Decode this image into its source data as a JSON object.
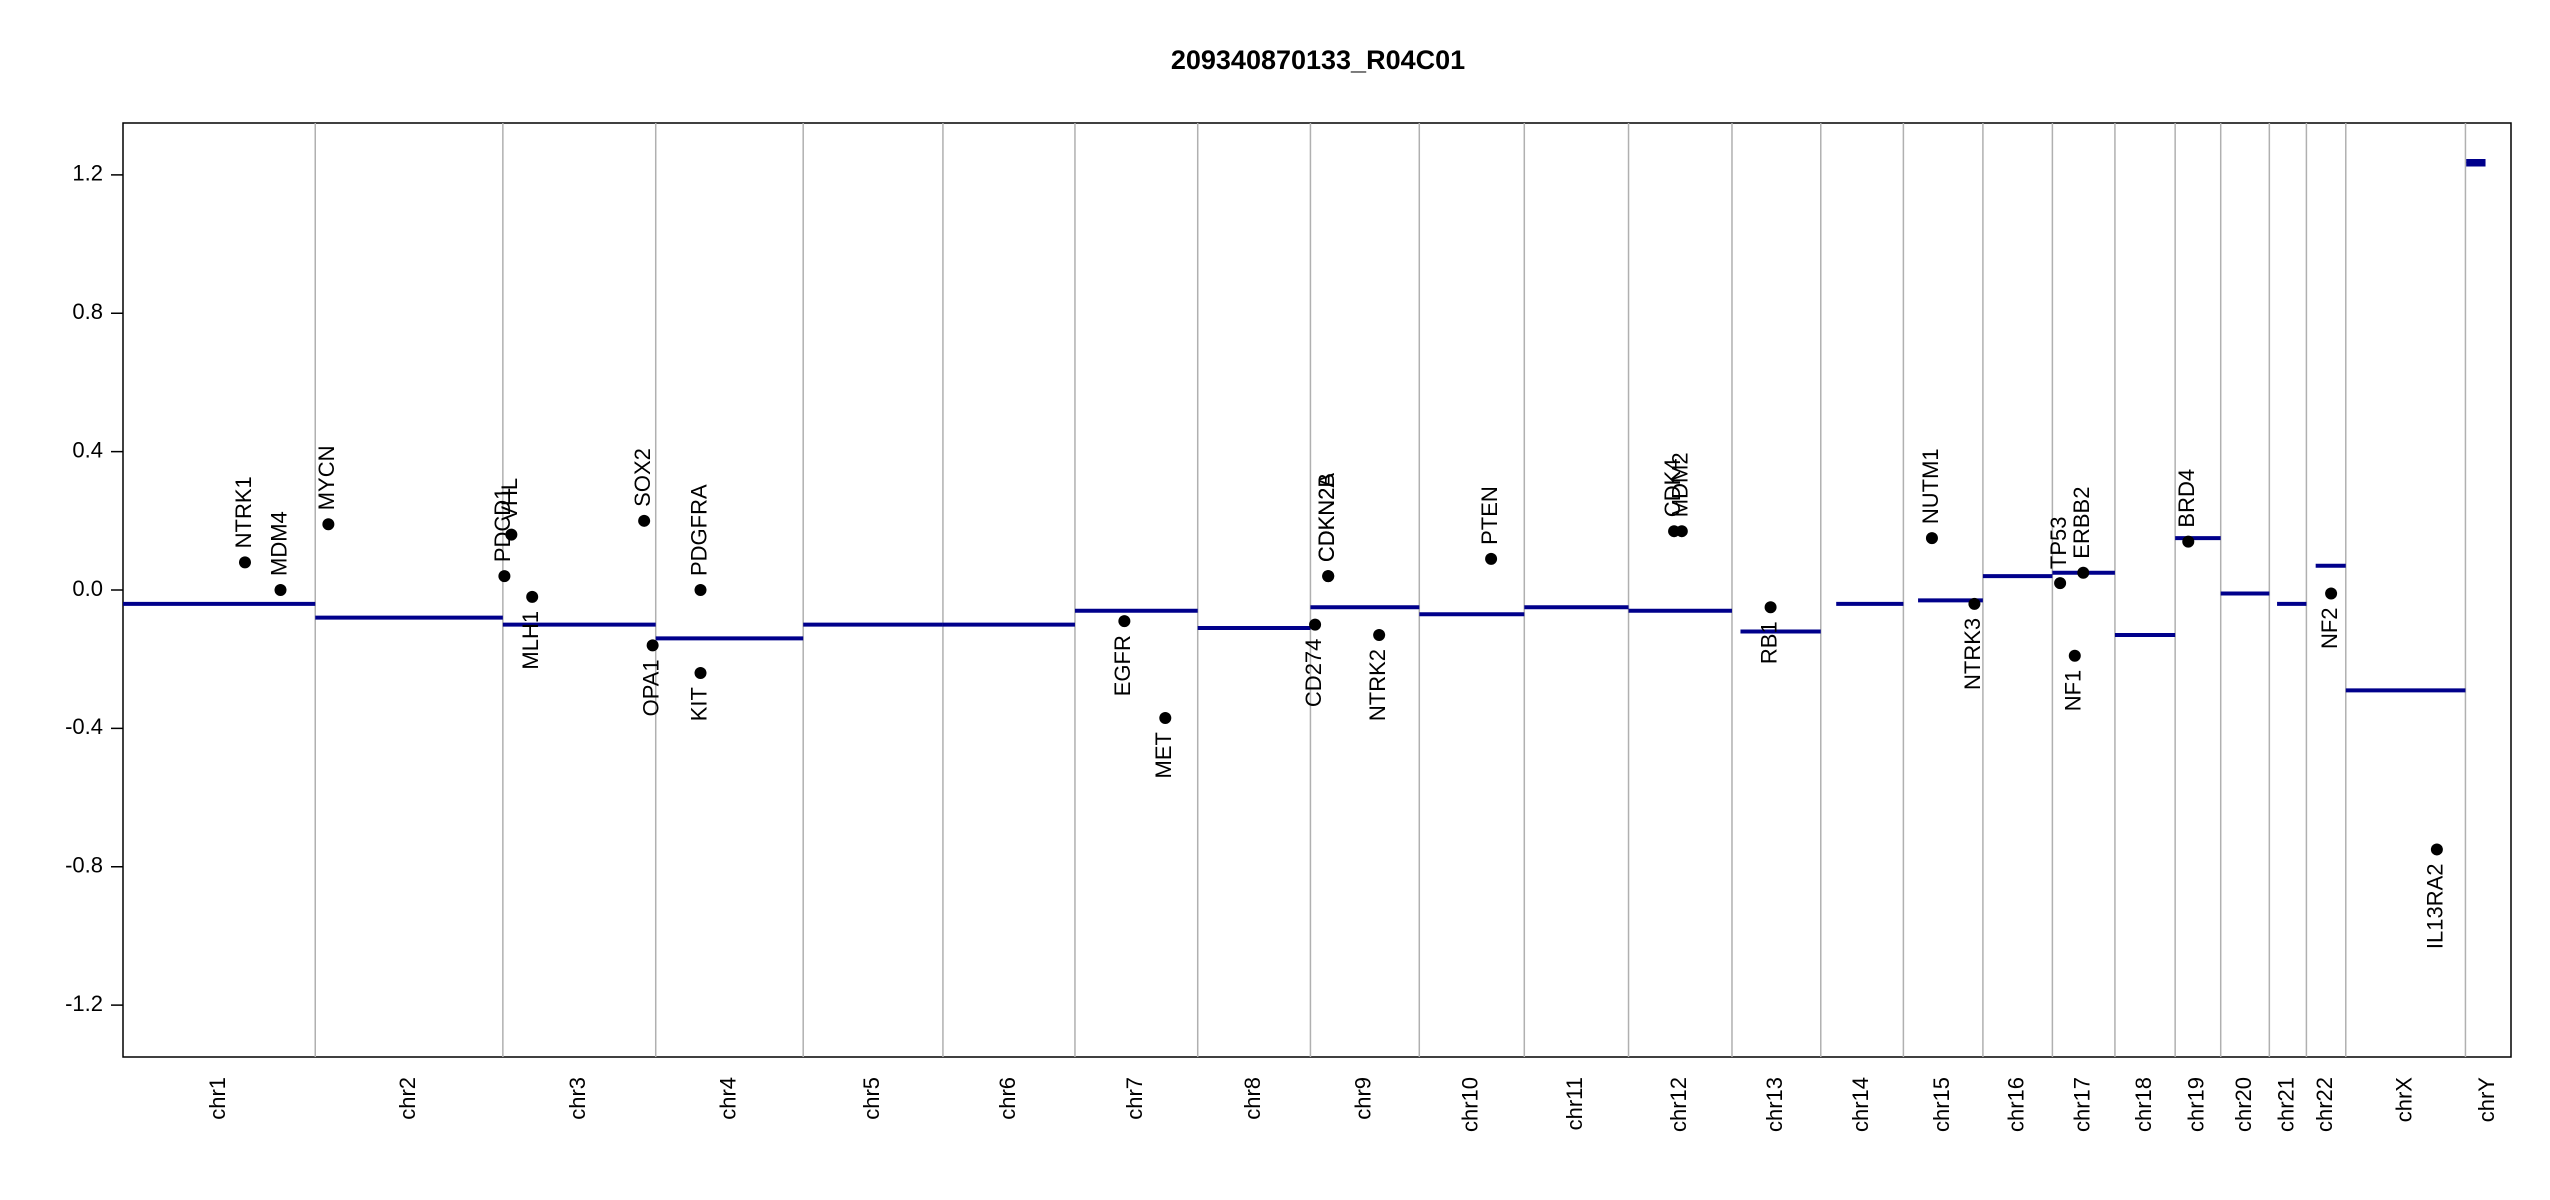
{
  "chart_data": {
    "type": "cnv",
    "title": "209340870133_R04C01",
    "chromosomes": [
      {
        "name": "chr1",
        "length": 249
      },
      {
        "name": "chr2",
        "length": 243
      },
      {
        "name": "chr3",
        "length": 198
      },
      {
        "name": "chr4",
        "length": 191
      },
      {
        "name": "chr5",
        "length": 181
      },
      {
        "name": "chr6",
        "length": 171
      },
      {
        "name": "chr7",
        "length": 159
      },
      {
        "name": "chr8",
        "length": 146
      },
      {
        "name": "chr9",
        "length": 141
      },
      {
        "name": "chr10",
        "length": 136
      },
      {
        "name": "chr11",
        "length": 135
      },
      {
        "name": "chr12",
        "length": 134
      },
      {
        "name": "chr13",
        "length": 115
      },
      {
        "name": "chr14",
        "length": 107
      },
      {
        "name": "chr15",
        "length": 103
      },
      {
        "name": "chr16",
        "length": 90
      },
      {
        "name": "chr17",
        "length": 81
      },
      {
        "name": "chr18",
        "length": 78
      },
      {
        "name": "chr19",
        "length": 59
      },
      {
        "name": "chr20",
        "length": 63
      },
      {
        "name": "chr21",
        "length": 48
      },
      {
        "name": "chr22",
        "length": 51
      },
      {
        "name": "chrX",
        "length": 155
      },
      {
        "name": "chrY",
        "length": 59
      }
    ],
    "segments": [
      {
        "start": 0,
        "end": 249,
        "value": -0.04
      },
      {
        "start": 249,
        "end": 492,
        "value": -0.08
      },
      {
        "start": 492,
        "end": 690,
        "value": -0.1
      },
      {
        "start": 690,
        "end": 881,
        "value": -0.14
      },
      {
        "start": 881,
        "end": 1062,
        "value": -0.1
      },
      {
        "start": 1062,
        "end": 1233,
        "value": -0.1
      },
      {
        "start": 1233,
        "end": 1392,
        "value": -0.06
      },
      {
        "start": 1392,
        "end": 1538,
        "value": -0.11
      },
      {
        "start": 1538,
        "end": 1679,
        "value": -0.05
      },
      {
        "start": 1679,
        "end": 1815,
        "value": -0.07
      },
      {
        "start": 1815,
        "end": 1950,
        "value": -0.05
      },
      {
        "start": 1950,
        "end": 2084,
        "value": -0.06
      },
      {
        "start": 2095,
        "end": 2199,
        "value": -0.12
      },
      {
        "start": 2219,
        "end": 2306,
        "value": -0.04
      },
      {
        "start": 2325,
        "end": 2409,
        "value": -0.03
      },
      {
        "start": 2409,
        "end": 2499,
        "value": 0.04
      },
      {
        "start": 2499,
        "end": 2580,
        "value": 0.05
      },
      {
        "start": 2580,
        "end": 2658,
        "value": -0.13
      },
      {
        "start": 2658,
        "end": 2717,
        "value": 0.15
      },
      {
        "start": 2717,
        "end": 2780,
        "value": -0.01
      },
      {
        "start": 2790,
        "end": 2828,
        "value": -0.04
      },
      {
        "start": 2840,
        "end": 2879,
        "value": 0.07
      },
      {
        "start": 2879,
        "end": 3034,
        "value": -0.29
      },
      {
        "start": 3035,
        "end": 3060,
        "value": 1.24
      },
      {
        "start": 3035,
        "end": 3060,
        "value": 1.23
      }
    ],
    "genes": [
      {
        "name": "NTRK1",
        "x": 158,
        "y": 0.08
      },
      {
        "name": "MDM4",
        "x": 204,
        "y": 0.0
      },
      {
        "name": "MYCN",
        "x": 266,
        "y": 0.19
      },
      {
        "name": "PDCD1",
        "x": 494,
        "y": 0.04
      },
      {
        "name": "VHL",
        "x": 503,
        "y": 0.16
      },
      {
        "name": "MLH1",
        "x": 530,
        "y": -0.02
      },
      {
        "name": "SOX2",
        "x": 675,
        "y": 0.2
      },
      {
        "name": "OPA1",
        "x": 686,
        "y": -0.16
      },
      {
        "name": "PDGFRA",
        "x": 748,
        "y": 0.0
      },
      {
        "name": "KIT",
        "x": 748,
        "y": -0.24
      },
      {
        "name": "EGFR",
        "x": 1297,
        "y": -0.09
      },
      {
        "name": "MET",
        "x": 1350,
        "y": -0.37
      },
      {
        "name": "CDKN2A",
        "x": 1561,
        "y": 0.04
      },
      {
        "name": "CDKN2B",
        "x": 1561,
        "y": 0.04
      },
      {
        "name": "CD274",
        "x": 1544,
        "y": -0.1
      },
      {
        "name": "NTRK2",
        "x": 1627,
        "y": -0.13
      },
      {
        "name": "PTEN",
        "x": 1772,
        "y": 0.09
      },
      {
        "name": "CDK4",
        "x": 2009,
        "y": 0.17
      },
      {
        "name": "MDM2",
        "x": 2019,
        "y": 0.17
      },
      {
        "name": "RB1",
        "x": 2134,
        "y": -0.05
      },
      {
        "name": "NUTM1",
        "x": 2343,
        "y": 0.15
      },
      {
        "name": "NTRK3",
        "x": 2398,
        "y": -0.04
      },
      {
        "name": "TP53",
        "x": 2509,
        "y": 0.02
      },
      {
        "name": "ERBB2",
        "x": 2539,
        "y": 0.05
      },
      {
        "name": "NF1",
        "x": 2528,
        "y": -0.19
      },
      {
        "name": "BRD4",
        "x": 2675,
        "y": 0.14
      },
      {
        "name": "NF2",
        "x": 2860,
        "y": -0.01
      },
      {
        "name": "IL13RA2",
        "x": 2997,
        "y": -0.75
      }
    ],
    "segment_color": "#00008b",
    "gene_color": "#000000",
    "ylim": [
      -1.35,
      1.35
    ],
    "yticks": [
      -1.2,
      -0.8,
      -0.4,
      {
        "value": 0,
        "label": "0.0"
      },
      0.4,
      0.8,
      1.2
    ]
  }
}
